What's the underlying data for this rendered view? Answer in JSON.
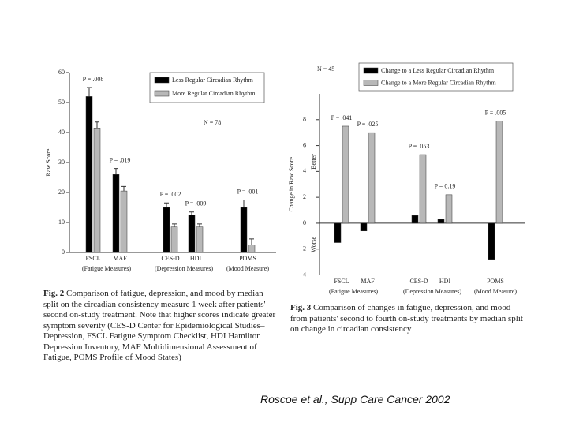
{
  "chart_data": [
    {
      "type": "bar",
      "ylabel": "Raw Score",
      "annotation": "N = 78",
      "categories": [
        "FSCL",
        "MAF",
        "CES-D",
        "HDI",
        "POMS"
      ],
      "group_labels": [
        "(Fatigue Measures)",
        "(Depression Measures)",
        "(Mood Measure)"
      ],
      "p_labels": [
        "P = .008",
        "P = .019",
        "P = .002",
        "P = .009",
        "P = .001"
      ],
      "series": [
        {
          "name": "Less Regular Circadian Rhythm",
          "color": "#000000",
          "values": [
            52,
            26,
            15,
            12.5,
            15
          ],
          "errors": [
            3,
            2,
            1.5,
            1,
            2.5
          ]
        },
        {
          "name": "More Regular Circadian Rhythm",
          "color": "#b8b8b8",
          "values": [
            41.5,
            20.5,
            8.5,
            8.5,
            2.5
          ],
          "errors": [
            2,
            1.5,
            1,
            1,
            2
          ]
        }
      ],
      "ylim": [
        0,
        60
      ],
      "yticks": [
        0,
        10,
        20,
        30,
        40,
        50,
        60
      ]
    },
    {
      "type": "bar",
      "ylabel": "Change in Raw Score",
      "upper_label": "Better",
      "lower_label": "Worse",
      "annotation": "N = 45",
      "categories": [
        "FSCL",
        "MAF",
        "CES-D",
        "HDI",
        "POMS"
      ],
      "group_labels": [
        "(Fatigue Measures)",
        "(Depression Measures)",
        "(Mood Measure)"
      ],
      "p_labels": [
        "P = .041",
        "P = .025",
        "P = .053",
        "P = 0.19",
        "P = .005"
      ],
      "series": [
        {
          "name": "Change to a Less Regular Circadian Rhythm",
          "color": "#000000",
          "values": [
            -1.5,
            -0.6,
            0.6,
            0.3,
            -2.8
          ]
        },
        {
          "name": "Change to a More Regular Circadian Rhythm",
          "color": "#b8b8b8",
          "values": [
            7.5,
            7.0,
            5.3,
            2.2,
            7.9
          ]
        }
      ],
      "ylim": [
        -4,
        10
      ],
      "yticks": [
        {
          "value": -4,
          "label": "4"
        },
        {
          "value": -2,
          "label": "2"
        },
        0,
        2,
        4,
        6,
        8
      ]
    }
  ],
  "captions": [
    {
      "label": "Fig. 2",
      "text": "Comparison of fatigue, depression, and mood by median split on the circadian consistency measure 1 week after patients' second on-study treatment. Note that higher scores indicate greater symptom severity (CES-D Center for Epidemiological Studies–Depression, FSCL Fatigue Symptom Checklist, HDI Hamilton Depression Inventory, MAF Multidimensional Assessment of Fatigue, POMS Profile of Mood States)"
    },
    {
      "label": "Fig. 3",
      "text": "Comparison of changes in fatigue, depression, and mood from patients' second to fourth on-study treatments by median split on change in circadian consistency"
    }
  ],
  "citation": "Roscoe et al., Supp Care Cancer 2002"
}
